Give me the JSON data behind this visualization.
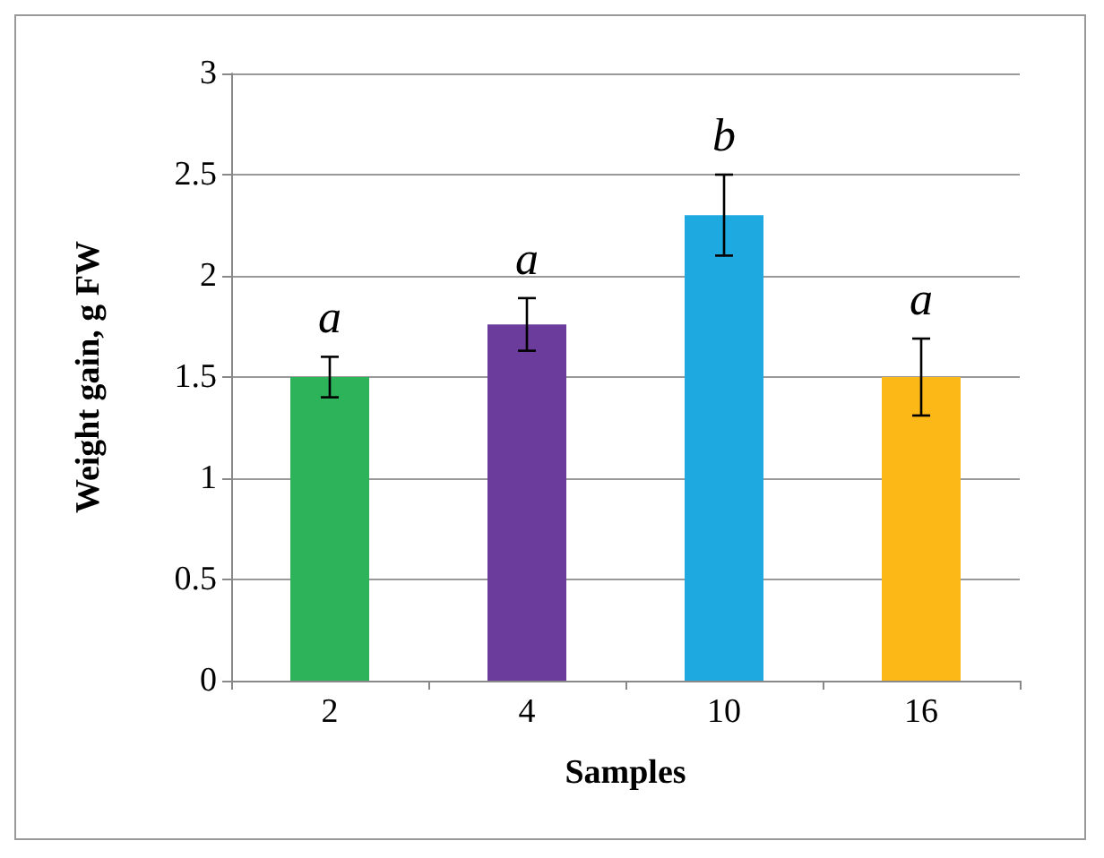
{
  "chart_data": {
    "type": "bar",
    "xlabel": "Samples",
    "ylabel": "Weight gain, g FW",
    "categories": [
      "2",
      "4",
      "10",
      "16"
    ],
    "values": [
      1.5,
      1.76,
      2.3,
      1.5
    ],
    "colors": [
      "#2db45a",
      "#6b3c9b",
      "#1ea9e1",
      "#fbb817"
    ],
    "errors": [
      0.1,
      0.13,
      0.2,
      0.19
    ],
    "ylim": [
      0,
      3
    ],
    "yticks": [
      0,
      0.5,
      1,
      1.5,
      2,
      2.5,
      3
    ],
    "grid": "y",
    "annotations": [
      "a",
      "a",
      "b",
      "a"
    ]
  }
}
